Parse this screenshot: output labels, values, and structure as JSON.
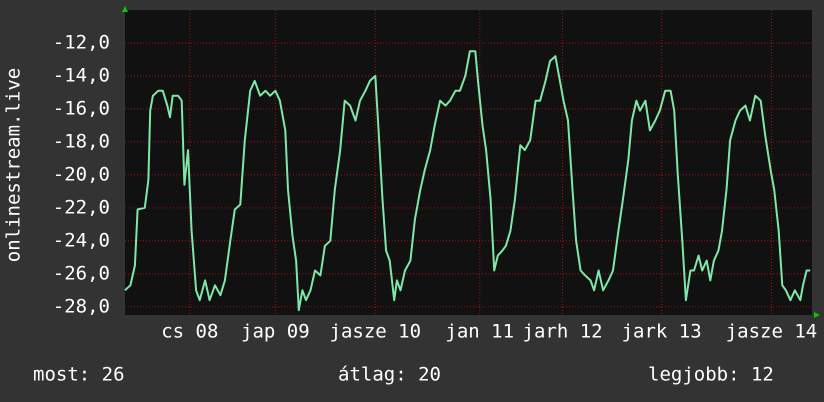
{
  "chart_data": {
    "type": "line",
    "ylabel": "onlinestream.live",
    "x": [
      0.0,
      0.06,
      0.11,
      0.14,
      0.22,
      0.26,
      0.28,
      0.31,
      0.37,
      0.42,
      0.47,
      0.5,
      0.53,
      0.59,
      0.63,
      0.66,
      0.7,
      0.74,
      0.79,
      0.83,
      0.89,
      0.94,
      1.0,
      1.06,
      1.11,
      1.17,
      1.22,
      1.28,
      1.33,
      1.39,
      1.44,
      1.5,
      1.56,
      1.61,
      1.67,
      1.72,
      1.78,
      1.81,
      1.86,
      1.9,
      1.93,
      1.97,
      2.01,
      2.06,
      2.11,
      2.17,
      2.22,
      2.28,
      2.33,
      2.39,
      2.44,
      2.5,
      2.56,
      2.61,
      2.67,
      2.72,
      2.78,
      2.81,
      2.86,
      2.9,
      2.94,
      2.99,
      3.02,
      3.06,
      3.11,
      3.17,
      3.22,
      3.28,
      3.33,
      3.39,
      3.44,
      3.5,
      3.56,
      3.61,
      3.67,
      3.72,
      3.78,
      3.83,
      3.89,
      3.92,
      3.97,
      4.01,
      4.06,
      4.1,
      4.14,
      4.19,
      4.23,
      4.28,
      4.33,
      4.39,
      4.44,
      4.5,
      4.56,
      4.61,
      4.67,
      4.72,
      4.78,
      4.81,
      4.87,
      4.92,
      4.97,
      5.01,
      5.06,
      5.11,
      5.17,
      5.21,
      5.26,
      5.31,
      5.37,
      5.42,
      5.48,
      5.53,
      5.59,
      5.63,
      5.68,
      5.72,
      5.78,
      5.83,
      5.89,
      5.94,
      6.0,
      6.06,
      6.1,
      6.14,
      6.19,
      6.23,
      6.28,
      6.32,
      6.37,
      6.41,
      6.46,
      6.5,
      6.54,
      6.59,
      6.63,
      6.68,
      6.72,
      6.78,
      6.83,
      6.89,
      6.94,
      7.0,
      7.06,
      7.11,
      7.17,
      7.21,
      7.26,
      7.3,
      7.34,
      7.39,
      7.44,
      7.5,
      7.53,
      7.57,
      7.61
    ],
    "series": [
      {
        "color": "#7fe8a8",
        "values": [
          -27.0,
          -26.7,
          -25.5,
          -22.1,
          -22.0,
          -20.3,
          -16.1,
          -15.2,
          -14.9,
          -14.9,
          -15.8,
          -16.5,
          -15.2,
          -15.2,
          -15.5,
          -20.6,
          -18.5,
          -23.4,
          -27.0,
          -27.6,
          -26.4,
          -27.6,
          -26.7,
          -27.3,
          -26.4,
          -24.0,
          -22.1,
          -21.8,
          -17.9,
          -14.9,
          -14.3,
          -15.2,
          -14.9,
          -15.2,
          -14.9,
          -15.5,
          -17.3,
          -20.9,
          -23.7,
          -25.2,
          -28.2,
          -27.0,
          -27.6,
          -27.0,
          -25.8,
          -26.1,
          -24.3,
          -24.0,
          -20.9,
          -18.5,
          -15.5,
          -15.8,
          -16.7,
          -15.5,
          -14.9,
          -14.3,
          -14.0,
          -16.7,
          -21.5,
          -24.6,
          -25.2,
          -27.6,
          -26.4,
          -27.0,
          -25.8,
          -25.2,
          -22.7,
          -20.9,
          -19.7,
          -18.5,
          -17.0,
          -15.5,
          -15.8,
          -15.5,
          -14.9,
          -14.9,
          -14.0,
          -12.5,
          -12.5,
          -14.3,
          -17.0,
          -18.5,
          -21.5,
          -25.8,
          -24.9,
          -24.6,
          -24.3,
          -23.4,
          -21.5,
          -18.2,
          -18.5,
          -17.9,
          -15.5,
          -15.5,
          -14.3,
          -13.1,
          -12.8,
          -13.7,
          -15.5,
          -16.7,
          -20.9,
          -24.0,
          -25.8,
          -26.1,
          -26.4,
          -27.0,
          -25.8,
          -27.0,
          -26.4,
          -25.8,
          -23.4,
          -21.5,
          -19.1,
          -16.7,
          -15.5,
          -16.1,
          -15.5,
          -17.3,
          -16.7,
          -16.1,
          -14.9,
          -14.9,
          -16.1,
          -20.0,
          -24.0,
          -27.6,
          -25.8,
          -25.8,
          -24.9,
          -25.8,
          -25.2,
          -26.4,
          -25.2,
          -24.6,
          -23.4,
          -20.9,
          -17.9,
          -16.7,
          -16.1,
          -15.8,
          -16.7,
          -15.2,
          -15.5,
          -17.6,
          -19.7,
          -20.9,
          -23.4,
          -26.7,
          -27.0,
          -27.6,
          -27.0,
          -27.6,
          -26.7,
          -25.8,
          -25.8
        ]
      }
    ],
    "xlim": [
      0,
      7.63
    ],
    "xticks": [
      {
        "value": 0.72,
        "label": "cs 08"
      },
      {
        "value": 1.67,
        "label": "jap 09"
      },
      {
        "value": 2.78,
        "label": "jasze 10"
      },
      {
        "value": 3.94,
        "label": "jan 11"
      },
      {
        "value": 4.86,
        "label": "jarh 12"
      },
      {
        "value": 5.96,
        "label": "jark 13"
      },
      {
        "value": 7.18,
        "label": "jasze 14"
      }
    ],
    "ylim": [
      -28.5,
      -10
    ],
    "yticks": [
      {
        "value": -28,
        "label": "-28,0"
      },
      {
        "value": -26,
        "label": "-26,0"
      },
      {
        "value": -24,
        "label": "-24,0"
      },
      {
        "value": -22,
        "label": "-22,0"
      },
      {
        "value": -20,
        "label": "-20,0"
      },
      {
        "value": -18,
        "label": "-18,0"
      },
      {
        "value": -16,
        "label": "-16,0"
      },
      {
        "value": -14,
        "label": "-14,0"
      },
      {
        "value": -12,
        "label": "-12,0"
      }
    ],
    "grid": true
  },
  "footer": [
    "most: 26",
    "átlag: 20",
    "legjobb: 12"
  ]
}
